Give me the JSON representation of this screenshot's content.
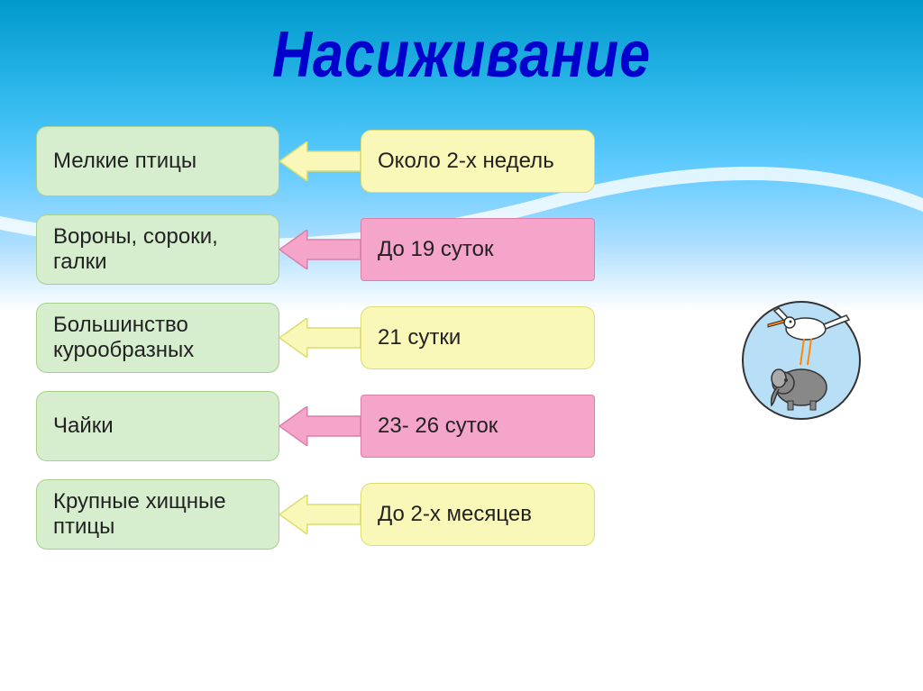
{
  "title": "Насиживание",
  "title_color": "#0000cc",
  "title_fontsize": 72,
  "background_gradient": [
    "#0099cc",
    "#33bbee",
    "#66ccff",
    "#aaddff",
    "#ffffff"
  ],
  "swoosh_color": "#ffffff",
  "colors": {
    "green_fill": "#d6edce",
    "green_border": "#a8d08d",
    "yellow_fill": "#faf8b8",
    "yellow_border": "#dcdc70",
    "pink_fill": "#f5a5ca",
    "pink_border": "#d980aa"
  },
  "arrow_width": 90,
  "arrow_height": 44,
  "rows": [
    {
      "left": "Мелкие птицы",
      "left_fill": "#d6edce",
      "left_border": "#a8d08d",
      "left_rounded": true,
      "arrow_fill": "#faf8b8",
      "arrow_border": "#dcdc70",
      "right": "Около 2-х недель",
      "right_fill": "#faf8b8",
      "right_border": "#dcdc70",
      "right_rounded": true
    },
    {
      "left": "Вороны, сороки, галки",
      "left_fill": "#d6edce",
      "left_border": "#a8d08d",
      "left_rounded": true,
      "arrow_fill": "#f5a5ca",
      "arrow_border": "#d980aa",
      "right": "До 19 суток",
      "right_fill": "#f5a5ca",
      "right_border": "#d980aa",
      "right_rounded": false
    },
    {
      "left": "Большинство  курообразных",
      "left_fill": "#d6edce",
      "left_border": "#a8d08d",
      "left_rounded": true,
      "arrow_fill": "#faf8b8",
      "arrow_border": "#dcdc70",
      "right": "21 сутки",
      "right_fill": "#faf8b8",
      "right_border": "#dcdc70",
      "right_rounded": true
    },
    {
      "left": "Чайки",
      "left_fill": "#d6edce",
      "left_border": "#a8d08d",
      "left_rounded": true,
      "arrow_fill": "#f5a5ca",
      "arrow_border": "#d980aa",
      "right": "23- 26 суток",
      "right_fill": "#f5a5ca",
      "right_border": "#d980aa",
      "right_rounded": false
    },
    {
      "left": "Крупные хищные птицы",
      "left_fill": "#d6edce",
      "left_border": "#a8d08d",
      "left_rounded": true,
      "arrow_fill": "#faf8b8",
      "arrow_border": "#dcdc70",
      "right": "До 2-х месяцев",
      "right_fill": "#faf8b8",
      "right_border": "#dcdc70",
      "right_rounded": true
    }
  ],
  "illustration": {
    "description": "stork-carrying-elephant",
    "bg_color": "#b8dff5",
    "stork_body": "#ffffff",
    "stork_beak": "#ff8800",
    "elephant_color": "#888888",
    "outline": "#333333"
  }
}
